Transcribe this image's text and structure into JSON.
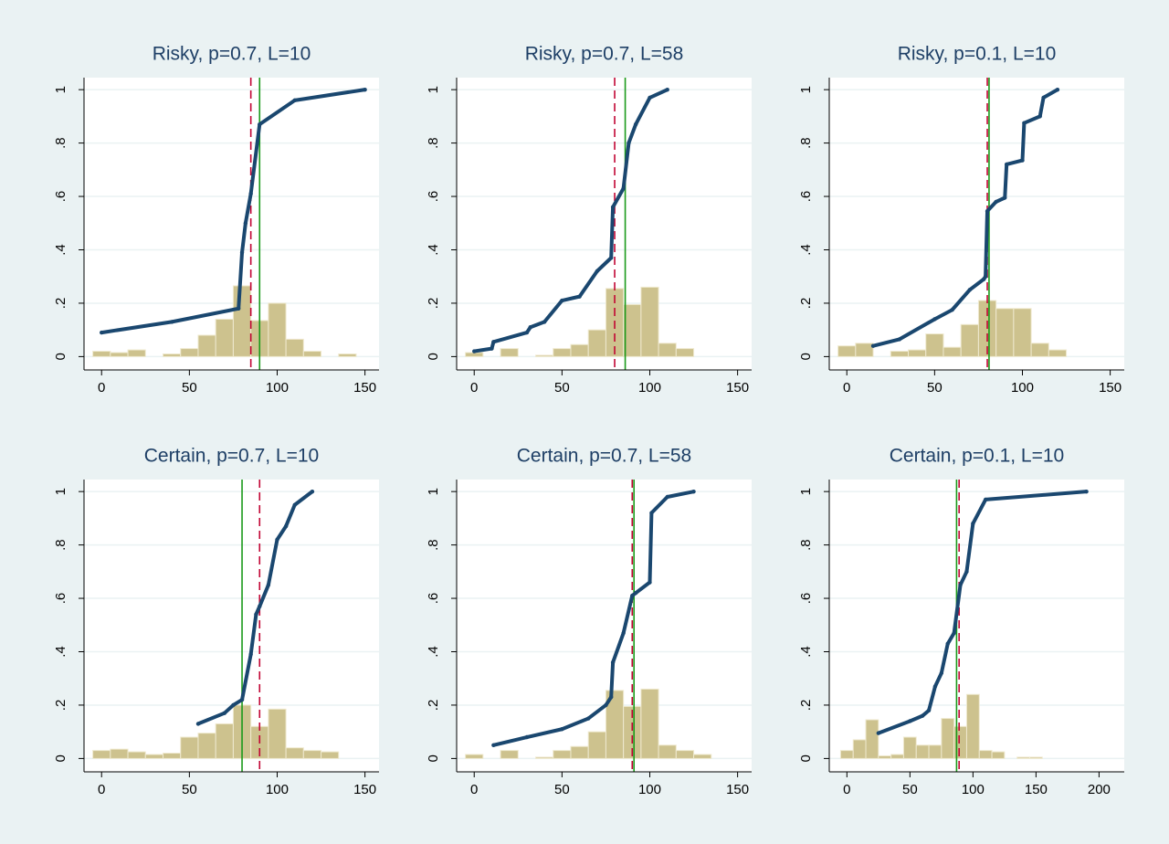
{
  "chart_data": [
    {
      "type": "histogram",
      "title": "Risky, p=0.7, L=10",
      "bins": [
        -5,
        5,
        15,
        25,
        35,
        45,
        55,
        65,
        75,
        85,
        95,
        105,
        115,
        125,
        135,
        145
      ],
      "values": [
        0.02,
        0.015,
        0.025,
        0,
        0.01,
        0.03,
        0.08,
        0.14,
        0.265,
        0.135,
        0.2,
        0.065,
        0.02,
        0,
        0.01
      ],
      "color": "#cdc28e",
      "line": {
        "x": [
          0,
          40,
          78,
          80,
          82,
          85,
          90,
          110,
          150
        ],
        "values": [
          0.09,
          0.13,
          0.18,
          0.39,
          0.5,
          0.61,
          0.87,
          0.96,
          1.0
        ],
        "color": "#1a476f"
      },
      "reference_lines": [
        {
          "x": 85,
          "color": "#c10534",
          "style": "dashed"
        },
        {
          "x": 90,
          "color": "#1a9a1a",
          "style": "solid"
        }
      ],
      "xlim": [
        -10,
        158
      ],
      "xticks": [
        0,
        50,
        100,
        150
      ],
      "ylim": [
        -0.05,
        1.045
      ],
      "yticks": [
        0,
        {
          "value": 0.2,
          "label": ".2"
        },
        {
          "value": 0.4,
          "label": ".4"
        },
        {
          "value": 0.6,
          "label": ".6"
        },
        {
          "value": 0.8,
          "label": ".8"
        },
        1
      ],
      "grid": true
    },
    {
      "type": "histogram",
      "title": "Risky, p=0.7, L=58",
      "bins": [
        -5,
        5,
        15,
        25,
        35,
        45,
        55,
        65,
        75,
        85,
        95,
        105,
        115,
        125,
        135
      ],
      "values": [
        0.015,
        0,
        0.03,
        0,
        0.005,
        0.03,
        0.045,
        0.1,
        0.255,
        0.195,
        0.26,
        0.05,
        0.03,
        0
      ],
      "color": "#cdc28e",
      "line": {
        "x": [
          0,
          10,
          11,
          30,
          32,
          40,
          50,
          60,
          70,
          78,
          79,
          85,
          88,
          92,
          100,
          110
        ],
        "values": [
          0.02,
          0.03,
          0.055,
          0.09,
          0.11,
          0.13,
          0.21,
          0.225,
          0.32,
          0.37,
          0.56,
          0.63,
          0.8,
          0.87,
          0.97,
          1.0
        ],
        "color": "#1a476f"
      },
      "reference_lines": [
        {
          "x": 80,
          "color": "#c10534",
          "style": "dashed"
        },
        {
          "x": 86,
          "color": "#1a9a1a",
          "style": "solid"
        }
      ],
      "xlim": [
        -10,
        158
      ],
      "xticks": [
        0,
        50,
        100,
        150
      ],
      "ylim": [
        -0.05,
        1.045
      ],
      "yticks": [
        0,
        {
          "value": 0.2,
          "label": ".2"
        },
        {
          "value": 0.4,
          "label": ".4"
        },
        {
          "value": 0.6,
          "label": ".6"
        },
        {
          "value": 0.8,
          "label": ".8"
        },
        1
      ],
      "grid": true
    },
    {
      "type": "histogram",
      "title": "Risky, p=0.1, L=10",
      "bins": [
        -5,
        5,
        15,
        25,
        35,
        45,
        55,
        65,
        75,
        85,
        95,
        105,
        115,
        125
      ],
      "values": [
        0.04,
        0.05,
        0,
        0.02,
        0.025,
        0.085,
        0.035,
        0.12,
        0.21,
        0.18,
        0.18,
        0.05,
        0.025
      ],
      "color": "#cdc28e",
      "line": {
        "x": [
          15,
          30,
          50,
          60,
          70,
          78,
          79,
          80,
          85,
          90,
          91,
          100,
          101,
          110,
          112,
          120
        ],
        "values": [
          0.04,
          0.065,
          0.14,
          0.175,
          0.25,
          0.29,
          0.3,
          0.545,
          0.58,
          0.595,
          0.72,
          0.735,
          0.875,
          0.9,
          0.97,
          1.0
        ],
        "color": "#1a476f"
      },
      "reference_lines": [
        {
          "x": 80,
          "color": "#c10534",
          "style": "dashed"
        },
        {
          "x": 81,
          "color": "#1a9a1a",
          "style": "solid"
        }
      ],
      "xlim": [
        -10,
        158
      ],
      "xticks": [
        0,
        50,
        100,
        150
      ],
      "ylim": [
        -0.05,
        1.045
      ],
      "yticks": [
        0,
        {
          "value": 0.2,
          "label": ".2"
        },
        {
          "value": 0.4,
          "label": ".4"
        },
        {
          "value": 0.6,
          "label": ".6"
        },
        {
          "value": 0.8,
          "label": ".8"
        },
        1
      ],
      "grid": true
    },
    {
      "type": "histogram",
      "title": "Certain, p=0.7, L=10",
      "bins": [
        -5,
        5,
        15,
        25,
        35,
        45,
        55,
        65,
        75,
        85,
        95,
        105,
        115,
        125,
        135
      ],
      "values": [
        0.03,
        0.035,
        0.025,
        0.015,
        0.02,
        0.08,
        0.095,
        0.13,
        0.2,
        0.12,
        0.185,
        0.04,
        0.03,
        0.025
      ],
      "color": "#cdc28e",
      "line": {
        "x": [
          55,
          70,
          75,
          80,
          85,
          88,
          90,
          95,
          100,
          105,
          110,
          120
        ],
        "values": [
          0.13,
          0.17,
          0.2,
          0.22,
          0.39,
          0.54,
          0.57,
          0.65,
          0.82,
          0.87,
          0.95,
          1.0
        ],
        "color": "#1a476f"
      },
      "reference_lines": [
        {
          "x": 90,
          "color": "#c10534",
          "style": "dashed"
        },
        {
          "x": 80,
          "color": "#1a9a1a",
          "style": "solid"
        }
      ],
      "xlim": [
        -10,
        158
      ],
      "xticks": [
        0,
        50,
        100,
        150
      ],
      "ylim": [
        -0.05,
        1.045
      ],
      "yticks": [
        0,
        {
          "value": 0.2,
          "label": ".2"
        },
        {
          "value": 0.4,
          "label": ".4"
        },
        {
          "value": 0.6,
          "label": ".6"
        },
        {
          "value": 0.8,
          "label": ".8"
        },
        1
      ],
      "grid": true
    },
    {
      "type": "histogram",
      "title": "Certain, p=0.7, L=58",
      "bins": [
        -5,
        5,
        15,
        25,
        35,
        45,
        55,
        65,
        75,
        85,
        95,
        105,
        115,
        125,
        135
      ],
      "values": [
        0.015,
        0,
        0.03,
        0,
        0.005,
        0.03,
        0.045,
        0.1,
        0.255,
        0.195,
        0.26,
        0.05,
        0.03,
        0.015
      ],
      "color": "#cdc28e",
      "line": {
        "x": [
          11,
          30,
          50,
          65,
          75,
          78,
          79,
          85,
          90,
          92,
          100,
          101,
          110,
          125
        ],
        "values": [
          0.05,
          0.08,
          0.11,
          0.15,
          0.2,
          0.23,
          0.36,
          0.47,
          0.61,
          0.62,
          0.66,
          0.92,
          0.98,
          1.0
        ],
        "color": "#1a476f"
      },
      "reference_lines": [
        {
          "x": 90,
          "color": "#c10534",
          "style": "dashed"
        },
        {
          "x": 91,
          "color": "#1a9a1a",
          "style": "solid"
        }
      ],
      "xlim": [
        -10,
        158
      ],
      "xticks": [
        0,
        50,
        100,
        150
      ],
      "ylim": [
        -0.05,
        1.045
      ],
      "yticks": [
        0,
        {
          "value": 0.2,
          "label": ".2"
        },
        {
          "value": 0.4,
          "label": ".4"
        },
        {
          "value": 0.6,
          "label": ".6"
        },
        {
          "value": 0.8,
          "label": ".8"
        },
        1
      ],
      "grid": true
    },
    {
      "type": "histogram",
      "title": "Certain, p=0.1, L=10",
      "bins": [
        -5,
        5,
        15,
        25,
        35,
        45,
        55,
        65,
        75,
        85,
        95,
        105,
        115,
        125,
        135,
        145,
        155
      ],
      "values": [
        0.03,
        0.07,
        0.145,
        0.01,
        0.015,
        0.08,
        0.05,
        0.05,
        0.15,
        0.12,
        0.24,
        0.03,
        0.025,
        0,
        0.005,
        0.005
      ],
      "color": "#cdc28e",
      "line": {
        "x": [
          25,
          50,
          60,
          65,
          70,
          75,
          80,
          85,
          90,
          95,
          100,
          110,
          190
        ],
        "values": [
          0.095,
          0.14,
          0.16,
          0.18,
          0.27,
          0.32,
          0.43,
          0.47,
          0.65,
          0.7,
          0.88,
          0.97,
          1.0
        ],
        "color": "#1a476f"
      },
      "reference_lines": [
        {
          "x": 89,
          "color": "#c10534",
          "style": "dashed"
        },
        {
          "x": 87,
          "color": "#1a9a1a",
          "style": "solid"
        }
      ],
      "xlim": [
        -14,
        220
      ],
      "xticks": [
        0,
        50,
        100,
        150,
        200
      ],
      "ylim": [
        -0.05,
        1.045
      ],
      "yticks": [
        0,
        {
          "value": 0.2,
          "label": ".2"
        },
        {
          "value": 0.4,
          "label": ".4"
        },
        {
          "value": 0.6,
          "label": ".6"
        },
        {
          "value": 0.8,
          "label": ".8"
        },
        1
      ],
      "grid": true
    }
  ]
}
